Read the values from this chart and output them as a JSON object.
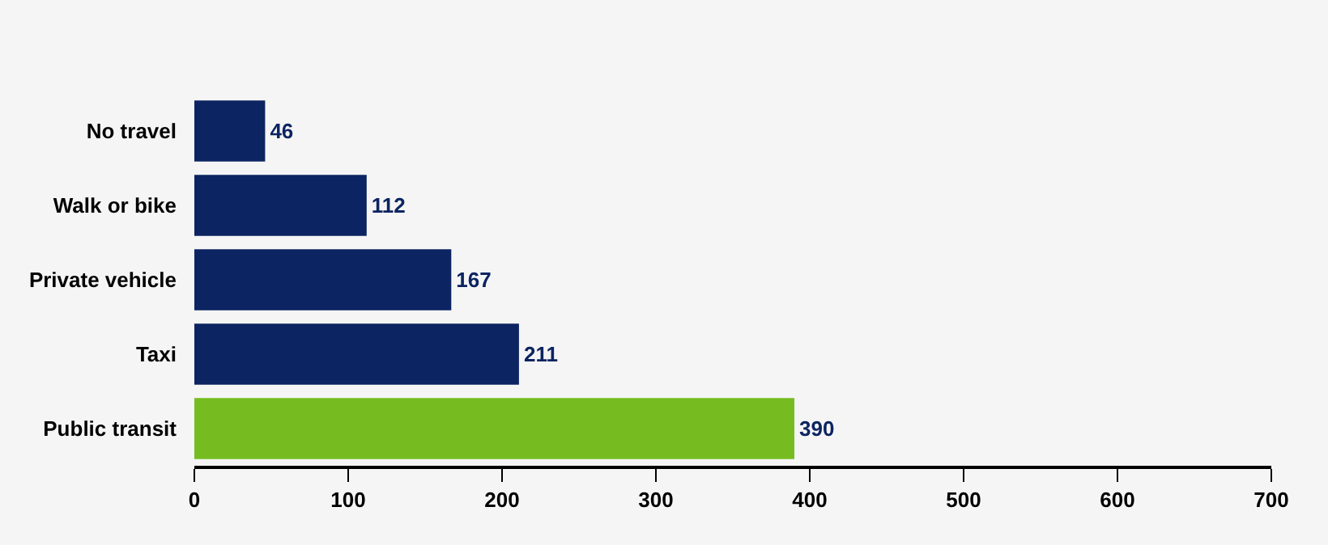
{
  "chart_data": {
    "type": "bar",
    "orientation": "horizontal",
    "categories": [
      "No travel",
      "Walk or bike",
      "Private vehicle",
      "Taxi",
      "Public transit"
    ],
    "values": [
      46,
      112,
      167,
      211,
      390
    ],
    "colors": [
      "#0c2461",
      "#0c2461",
      "#0c2461",
      "#0c2461",
      "#76bc21"
    ],
    "xlim": [
      0,
      700
    ],
    "xticks": [
      0,
      100,
      200,
      300,
      400,
      500,
      600,
      700
    ],
    "data_labels": true
  }
}
